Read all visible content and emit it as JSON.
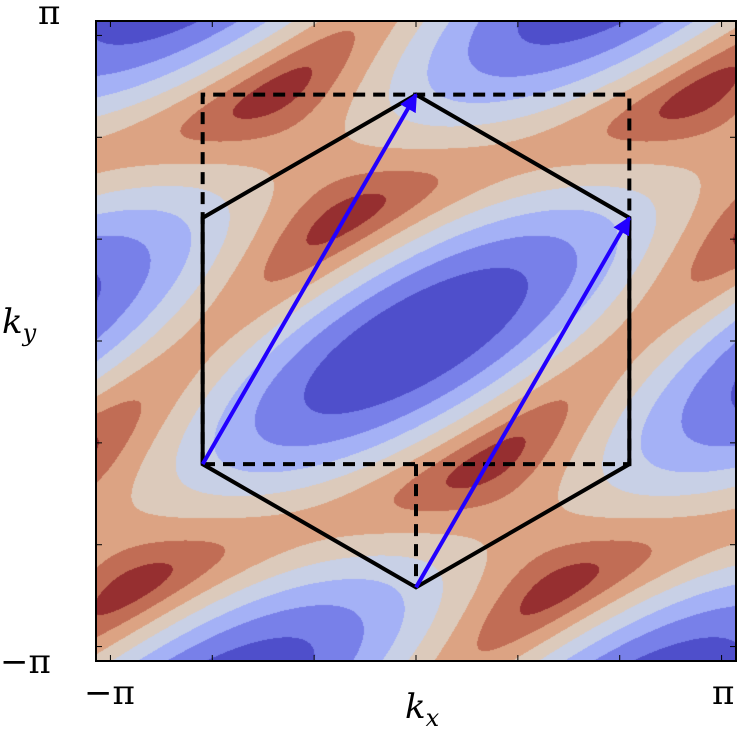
{
  "chart_data": {
    "type": "heatmap",
    "style": "filled contour",
    "title": "",
    "xlabel": "k",
    "xlabel_sub": "x",
    "ylabel": "k",
    "ylabel_sub": "y",
    "xlim": [
      -3.14159,
      3.14159
    ],
    "ylim": [
      -3.14159,
      3.14159
    ],
    "x_tick_labels": [
      {
        "value": -3.14159,
        "text": "−π"
      },
      {
        "value": 3.14159,
        "text": "π"
      }
    ],
    "y_tick_labels": [
      {
        "value": -3.14159,
        "text": "−π"
      },
      {
        "value": 3.14159,
        "text": "π"
      }
    ],
    "minor_ticks": [
      -3,
      -2,
      -1,
      0,
      1,
      2,
      3
    ],
    "grid": false,
    "legend": "none",
    "levels": [
      -3.0,
      -2.625,
      -2.25,
      -1.875,
      -1.5,
      -1.125,
      -0.75,
      -0.375,
      0.0
    ],
    "colors": [
      "#4f4fcb",
      "#7880e9",
      "#a4b1f6",
      "#c8d0e6",
      "#dccabb",
      "#dca383",
      "#c16d55",
      "#962f30"
    ],
    "overlays": {
      "hexagon": {
        "color": "#000000",
        "vertices": [
          [
            0,
            2.4184
          ],
          [
            2.0944,
            1.2092
          ],
          [
            2.0944,
            -1.2092
          ],
          [
            0,
            -2.4184
          ],
          [
            -2.0944,
            -1.2092
          ],
          [
            -2.0944,
            1.2092
          ]
        ]
      },
      "dashed_rectangle": {
        "color": "#000000",
        "x": [
          -2.0944,
          2.0944
        ],
        "y": [
          -1.2092,
          2.4184
        ]
      },
      "dashed_segment": {
        "color": "#000000",
        "from": [
          0,
          -1.2092
        ],
        "to": [
          0,
          -2.4184
        ]
      },
      "arrows": [
        {
          "color": "#2200ff",
          "from": [
            -2.0944,
            -1.2092
          ],
          "to": [
            0,
            2.4184
          ]
        },
        {
          "color": "#2200ff",
          "from": [
            0,
            -2.4184
          ],
          "to": [
            2.0944,
            1.2092
          ]
        }
      ]
    }
  }
}
